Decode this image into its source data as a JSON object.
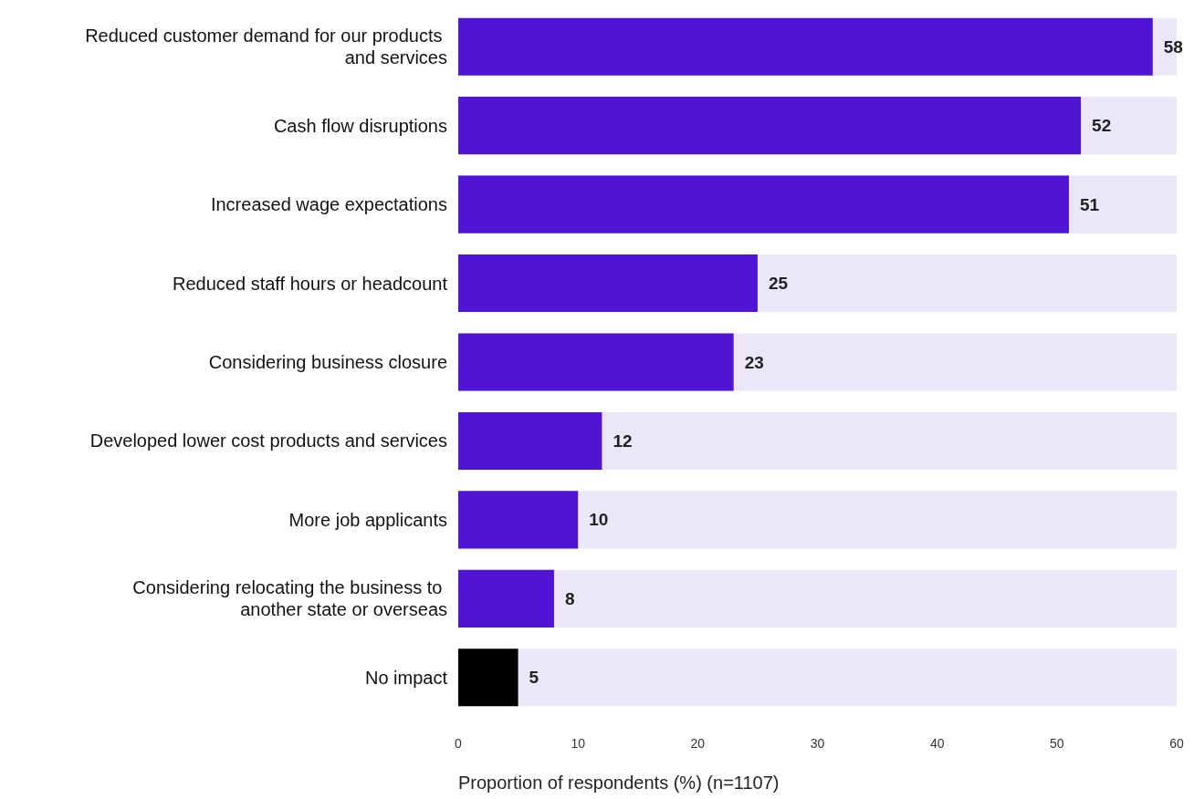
{
  "chart_data": {
    "type": "bar",
    "orientation": "horizontal",
    "categories": [
      "Reduced customer demand for our products and services",
      "Cash flow disruptions",
      "Increased wage expectations",
      "Reduced staff hours or headcount",
      "Considering business closure",
      "Developed lower cost products and services",
      "More job applicants",
      "Considering relocating the business to another state or overseas",
      "No impact"
    ],
    "values": [
      58,
      52,
      51,
      25,
      23,
      12,
      10,
      8,
      5
    ],
    "colors": [
      "#4f14d4",
      "#4f14d4",
      "#4f14d4",
      "#4f14d4",
      "#4f14d4",
      "#4f14d4",
      "#4f14d4",
      "#4f14d4",
      "#000000"
    ],
    "xlabel": "Proportion of respondents (%) (n=1107)",
    "xlim": [
      0,
      60
    ],
    "xticks": [
      0,
      10,
      20,
      30,
      40,
      50,
      60
    ],
    "data_labels": true
  }
}
